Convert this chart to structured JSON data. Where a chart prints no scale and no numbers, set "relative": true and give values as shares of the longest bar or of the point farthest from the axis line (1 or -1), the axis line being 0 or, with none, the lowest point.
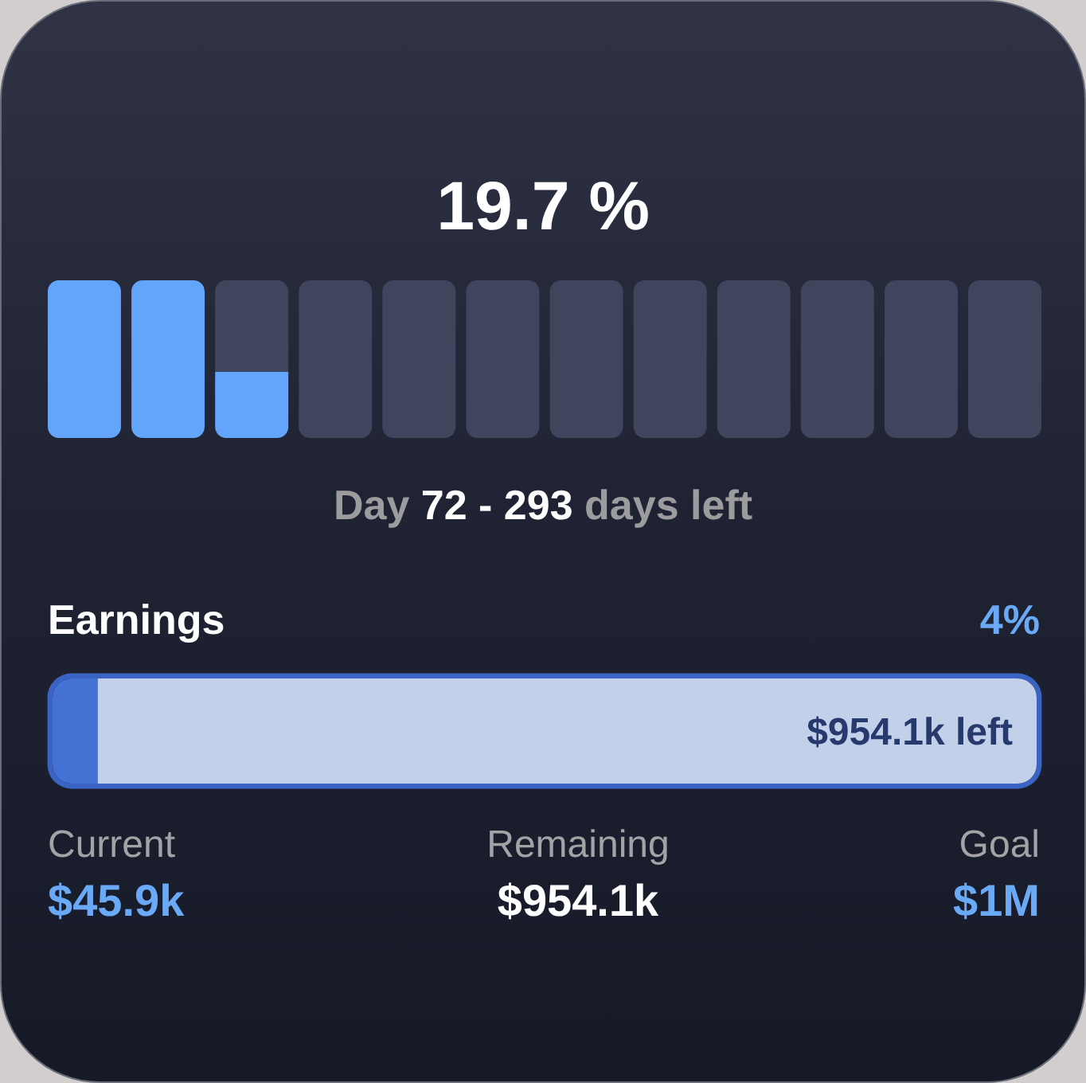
{
  "chart_data": [
    {
      "type": "bar",
      "title": "19.7 %",
      "xlabel": "Day 72 - 293 days left",
      "relative": true,
      "stacked": true,
      "categories": [
        null,
        null,
        null,
        null,
        null,
        null,
        null,
        null,
        null,
        null,
        null,
        null
      ],
      "series": [
        {
          "color": "#62a5fa",
          "values": [
            1,
            1,
            0.42,
            0,
            0,
            0,
            0,
            0,
            0,
            0,
            0,
            0
          ]
        },
        {
          "color": "#40455e",
          "values": [
            0,
            0,
            0.58,
            1,
            1,
            1,
            1,
            1,
            1,
            1,
            1,
            1
          ]
        }
      ]
    },
    {
      "type": "other",
      "title": "Earnings",
      "categories": [
        "Current",
        "Remaining"
      ],
      "values": [
        45.9,
        954.1
      ],
      "colors": [
        "#4472d4",
        "#c3d0ea"
      ],
      "value_labels": [
        "$45.9k",
        "$954.1k"
      ],
      "annotations": [
        "4%",
        "$954.1k left",
        "Goal",
        "$1M"
      ]
    }
  ]
}
